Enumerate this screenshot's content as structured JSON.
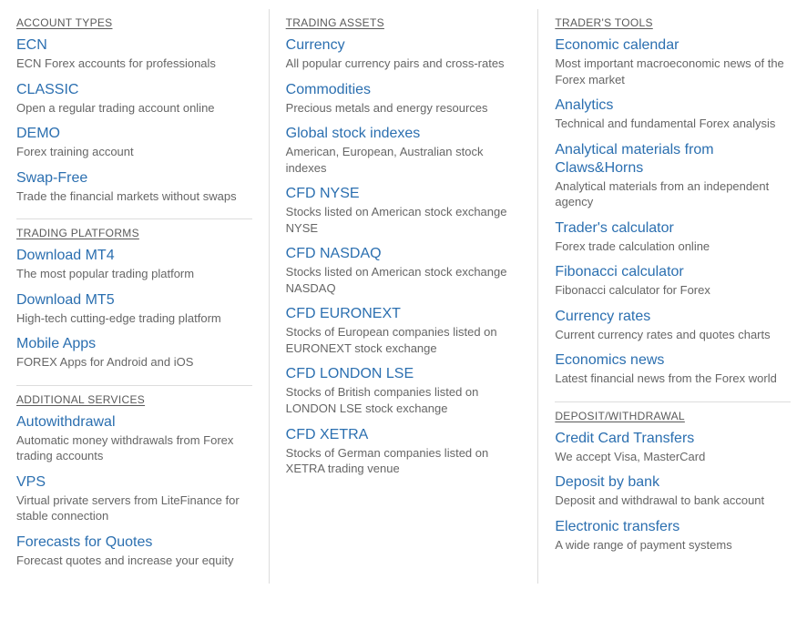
{
  "colors": {
    "link": "#2b6fb0",
    "text": "#666666",
    "heading": "#5a5a5a",
    "divider": "#dddddd",
    "background": "#ffffff"
  },
  "typography": {
    "heading_fontsize": 12,
    "link_fontsize": 16,
    "desc_fontsize": 13,
    "font_family": "Segoe UI"
  },
  "columns": [
    {
      "sections": [
        {
          "heading": "ACCOUNT TYPES",
          "items": [
            {
              "title": "ECN",
              "desc": "ECN Forex accounts for professionals"
            },
            {
              "title": "CLASSIC",
              "desc": "Open a regular trading account online"
            },
            {
              "title": "DEMO",
              "desc": "Forex training account"
            },
            {
              "title": "Swap-Free",
              "desc": "Trade the financial markets without swaps"
            }
          ]
        },
        {
          "heading": "TRADING PLATFORMS",
          "items": [
            {
              "title": "Download MT4",
              "desc": "The most popular trading platform"
            },
            {
              "title": "Download MT5",
              "desc": "High-tech cutting-edge trading platform"
            },
            {
              "title": "Mobile Apps",
              "desc": "FOREX Apps for Android and iOS"
            }
          ]
        },
        {
          "heading": "ADDITIONAL SERVICES",
          "items": [
            {
              "title": "Autowithdrawal",
              "desc": "Automatic money withdrawals from Forex trading accounts"
            },
            {
              "title": "VPS",
              "desc": "Virtual private servers from LiteFinance for stable connection"
            },
            {
              "title": "Forecasts for Quotes",
              "desc": "Forecast quotes and increase your equity"
            }
          ]
        }
      ]
    },
    {
      "sections": [
        {
          "heading": "TRADING ASSETS",
          "items": [
            {
              "title": "Currency",
              "desc": "All popular currency pairs and cross-rates"
            },
            {
              "title": "Commodities",
              "desc": "Precious metals and energy resources"
            },
            {
              "title": "Global stock indexes",
              "desc": "American, European, Australian stock indexes"
            },
            {
              "title": "CFD NYSE",
              "desc": "Stocks listed on American stock exchange NYSE"
            },
            {
              "title": "CFD NASDAQ",
              "desc": "Stocks listed on American stock exchange NASDAQ"
            },
            {
              "title": "CFD EURONEXT",
              "desc": "Stocks of European companies listed on EURONEXT stock exchange"
            },
            {
              "title": "CFD LONDON LSE",
              "desc": "Stocks of British companies listed on LONDON LSE stock exchange"
            },
            {
              "title": "CFD XETRA",
              "desc": "Stocks of German companies listed on XETRA trading venue"
            }
          ]
        }
      ]
    },
    {
      "sections": [
        {
          "heading": "TRADER'S TOOLS",
          "items": [
            {
              "title": "Economic calendar",
              "desc": "Most important macroeconomic news of the Forex market"
            },
            {
              "title": "Analytics",
              "desc": "Technical and fundamental Forex analysis"
            },
            {
              "title": "Analytical materials from Claws&Horns",
              "desc": "Analytical materials from an independent agency"
            },
            {
              "title": "Trader's calculator",
              "desc": "Forex trade calculation online"
            },
            {
              "title": "Fibonacci calculator",
              "desc": "Fibonacci calculator for Forex"
            },
            {
              "title": "Currency rates",
              "desc": "Current currency rates and quotes charts"
            },
            {
              "title": "Economics news",
              "desc": "Latest financial news from the Forex world"
            }
          ]
        },
        {
          "heading": "DEPOSIT/WITHDRAWAL",
          "items": [
            {
              "title": "Credit Card Transfers",
              "desc": "We accept Visa, MasterCard"
            },
            {
              "title": "Deposit by bank",
              "desc": "Deposit and withdrawal to bank account"
            },
            {
              "title": "Electronic transfers",
              "desc": "A wide range of payment systems"
            }
          ]
        }
      ]
    }
  ]
}
